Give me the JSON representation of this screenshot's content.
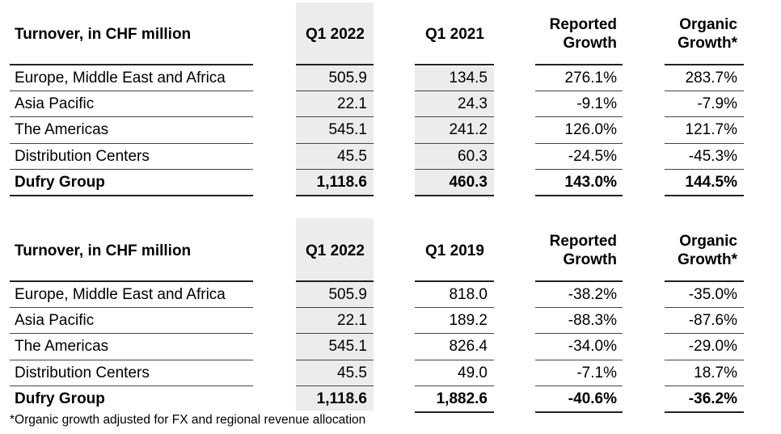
{
  "tables": [
    {
      "headers": {
        "label": "Turnover, in CHF million",
        "col1": "Q1 2022",
        "col2": "Q1 2021",
        "col3a": "Reported",
        "col3b": "Growth",
        "col4a": "Organic",
        "col4b": "Growth*"
      },
      "rows": [
        {
          "label": "Europe, Middle East and Africa",
          "c1": "505.9",
          "c2": "134.5",
          "c3": "276.1%",
          "c4": "283.7%"
        },
        {
          "label": "Asia Pacific",
          "c1": "22.1",
          "c2": "24.3",
          "c3": "-9.1%",
          "c4": "-7.9%"
        },
        {
          "label": "The Americas",
          "c1": "545.1",
          "c2": "241.2",
          "c3": "126.0%",
          "c4": "121.7%"
        },
        {
          "label": "Distribution Centers",
          "c1": "45.5",
          "c2": "60.3",
          "c3": "-24.5%",
          "c4": "-45.3%"
        },
        {
          "label": "Dufry Group",
          "c1": "1,118.6",
          "c2": "460.3",
          "c3": "143.0%",
          "c4": "144.5%"
        }
      ]
    },
    {
      "headers": {
        "label": "Turnover, in CHF million",
        "col1": "Q1 2022",
        "col2": "Q1 2019",
        "col3a": "Reported",
        "col3b": "Growth",
        "col4a": "Organic",
        "col4b": "Growth*"
      },
      "rows": [
        {
          "label": "Europe, Middle East and Africa",
          "c1": "505.9",
          "c2": "818.0",
          "c3": "-38.2%",
          "c4": "-35.0%"
        },
        {
          "label": "Asia Pacific",
          "c1": "22.1",
          "c2": "189.2",
          "c3": "-88.3%",
          "c4": "-87.6%"
        },
        {
          "label": "The Americas",
          "c1": "545.1",
          "c2": "826.4",
          "c3": "-34.0%",
          "c4": "-29.0%"
        },
        {
          "label": "Distribution Centers",
          "c1": "45.5",
          "c2": "49.0",
          "c3": "-7.1%",
          "c4": "18.7%"
        },
        {
          "label": "Dufry Group",
          "c1": "1,118.6",
          "c2": "1,882.6",
          "c3": "-40.6%",
          "c4": "-36.2%"
        }
      ]
    }
  ],
  "footnote": "*Organic growth adjusted for FX and regional revenue allocation"
}
